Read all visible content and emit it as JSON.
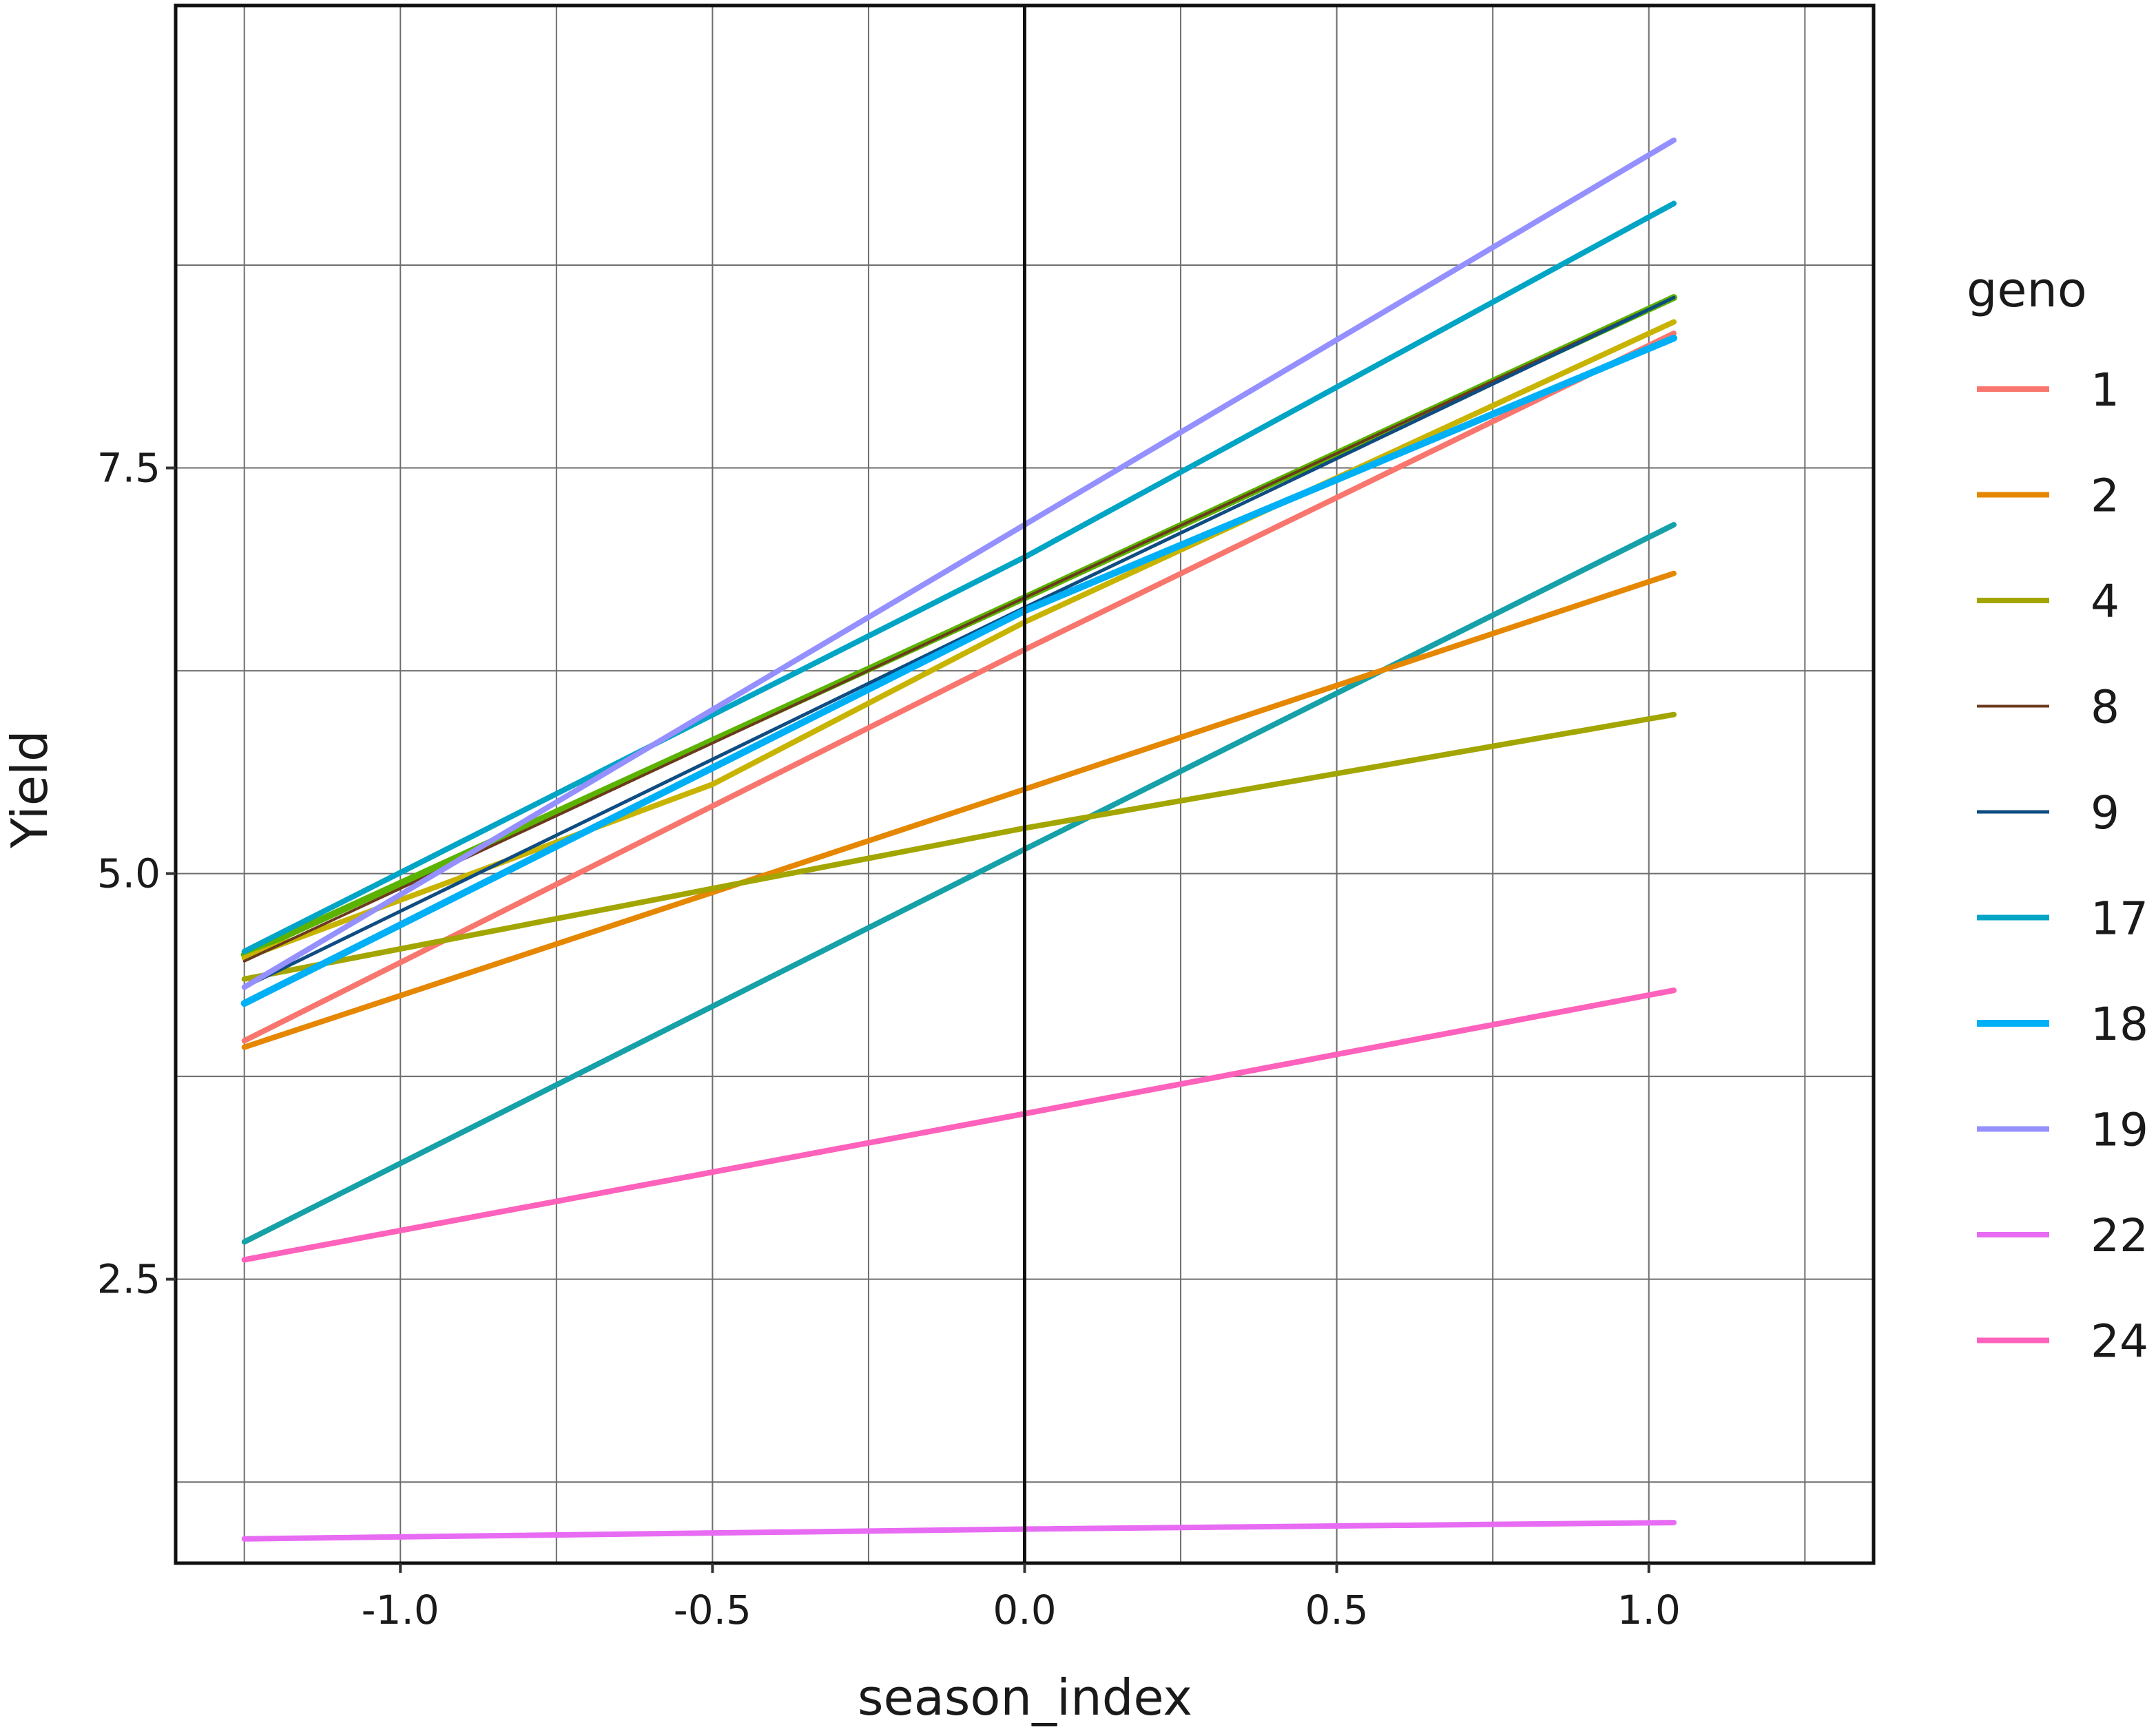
{
  "chart_data": {
    "type": "line",
    "xlabel": "season_index",
    "ylabel": "Yield",
    "xlim": [
      -1.36,
      1.36
    ],
    "ylim": [
      0.75,
      10.35
    ],
    "x_ticks": [
      -1.0,
      -0.5,
      0.0,
      0.5,
      1.0
    ],
    "x_tick_labels": [
      "-1.0",
      "-0.5",
      "0.0",
      "0.5",
      "1.0"
    ],
    "y_ticks": [
      2.5,
      5.0,
      7.5
    ],
    "y_tick_labels": [
      "2.5",
      "5.0",
      "7.5"
    ],
    "x_minor_grid": [
      -1.25,
      -0.75,
      -0.25,
      0.25,
      0.75,
      1.25
    ],
    "y_minor_grid": [
      1.25,
      3.75,
      6.25,
      8.75
    ],
    "reference_line_x": 0.0,
    "grid": true,
    "legend": {
      "title": "geno",
      "position": "right"
    },
    "series": [
      {
        "name": "1",
        "color": "#F8766D",
        "width": 8,
        "x": [
          -1.25,
          0.0,
          1.04
        ],
        "y": [
          3.97,
          6.38,
          8.33
        ]
      },
      {
        "name": "2",
        "color": "#E58700",
        "width": 8,
        "x": [
          -1.25,
          0.0,
          1.04
        ],
        "y": [
          3.93,
          5.52,
          6.85
        ]
      },
      {
        "name": "4",
        "color": "#A3A500",
        "width": 8,
        "x": [
          -1.25,
          0.0,
          1.04
        ],
        "y": [
          4.35,
          5.28,
          5.98
        ]
      },
      {
        "name": "8",
        "color": "#6B3A1E",
        "width": 4,
        "x": [
          -1.25,
          0.0,
          1.04
        ],
        "y": [
          4.46,
          6.7,
          8.55
        ]
      },
      {
        "name": "9",
        "color": "#0F4C81",
        "width": 5,
        "x": [
          -1.25,
          0.0,
          1.04
        ],
        "y": [
          4.3,
          6.64,
          8.55
        ]
      },
      {
        "name": "17",
        "color": "#00A5C5",
        "width": 8,
        "x": [
          -1.25,
          0.0,
          1.04
        ],
        "y": [
          4.52,
          6.95,
          9.13
        ]
      },
      {
        "name": "18",
        "color": "#00B0F6",
        "width": 10,
        "x": [
          -1.25,
          0.0,
          1.04
        ],
        "y": [
          4.2,
          6.62,
          8.3
        ]
      },
      {
        "name": "19",
        "color": "#9590FF",
        "width": 8,
        "x": [
          -1.25,
          0.0,
          1.04
        ],
        "y": [
          4.3,
          7.15,
          9.52
        ]
      },
      {
        "name": "22",
        "color": "#E76BF3",
        "width": 8,
        "x": [
          -1.25,
          0.0,
          1.04
        ],
        "y": [
          0.9,
          0.96,
          1.0
        ]
      },
      {
        "name": "24",
        "color": "#FF62BC",
        "width": 8,
        "x": [
          -1.25,
          0.0,
          1.04
        ],
        "y": [
          2.62,
          3.52,
          4.28
        ]
      }
    ],
    "unlabeled_series": [
      {
        "color": "#5BB300",
        "width": 10,
        "x": [
          -1.25,
          0.0,
          1.04
        ],
        "y": [
          4.5,
          6.7,
          8.55
        ]
      },
      {
        "color": "#C8B400",
        "width": 8,
        "x": [
          -1.25,
          -0.5,
          0.0,
          1.04
        ],
        "y": [
          4.48,
          5.55,
          6.55,
          8.4
        ]
      },
      {
        "color": "#16A1A8",
        "width": 8,
        "x": [
          -1.25,
          0.0,
          1.04
        ],
        "y": [
          2.73,
          5.15,
          7.15
        ]
      },
      {
        "color": "#E8336E",
        "width": 8,
        "x": [
          -1.25,
          0.0,
          1.04
        ],
        "y": [
          2.62,
          3.52,
          4.28
        ]
      }
    ]
  }
}
